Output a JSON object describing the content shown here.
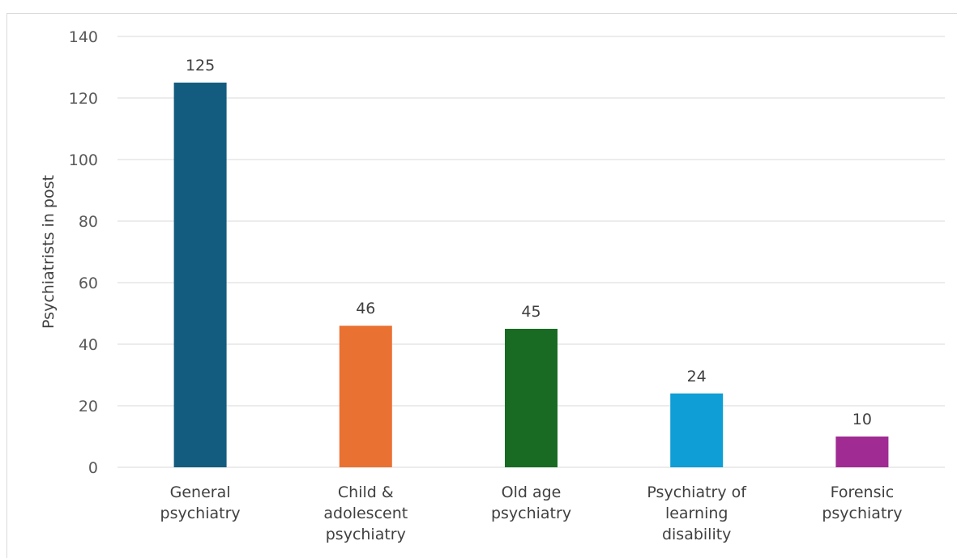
{
  "chart_data": {
    "type": "bar",
    "ylabel": "Psychiatrists in post",
    "xlabel": "",
    "ylim": [
      0,
      140
    ],
    "yticks": [
      0,
      20,
      40,
      60,
      80,
      100,
      120,
      140
    ],
    "grid": "horizontal",
    "categories": [
      [
        "General",
        "psychiatry"
      ],
      [
        "Child &",
        "adolescent",
        "psychiatry"
      ],
      [
        "Old age",
        "psychiatry"
      ],
      [
        "Psychiatry of",
        "learning",
        "disability"
      ],
      [
        "Forensic",
        "psychiatry"
      ]
    ],
    "values": [
      125,
      46,
      45,
      24,
      10
    ],
    "colors": [
      "#145c7f",
      "#e97132",
      "#196b24",
      "#0f9ed5",
      "#a02b93"
    ],
    "data_labels": [
      "125",
      "46",
      "45",
      "24",
      "10"
    ]
  }
}
